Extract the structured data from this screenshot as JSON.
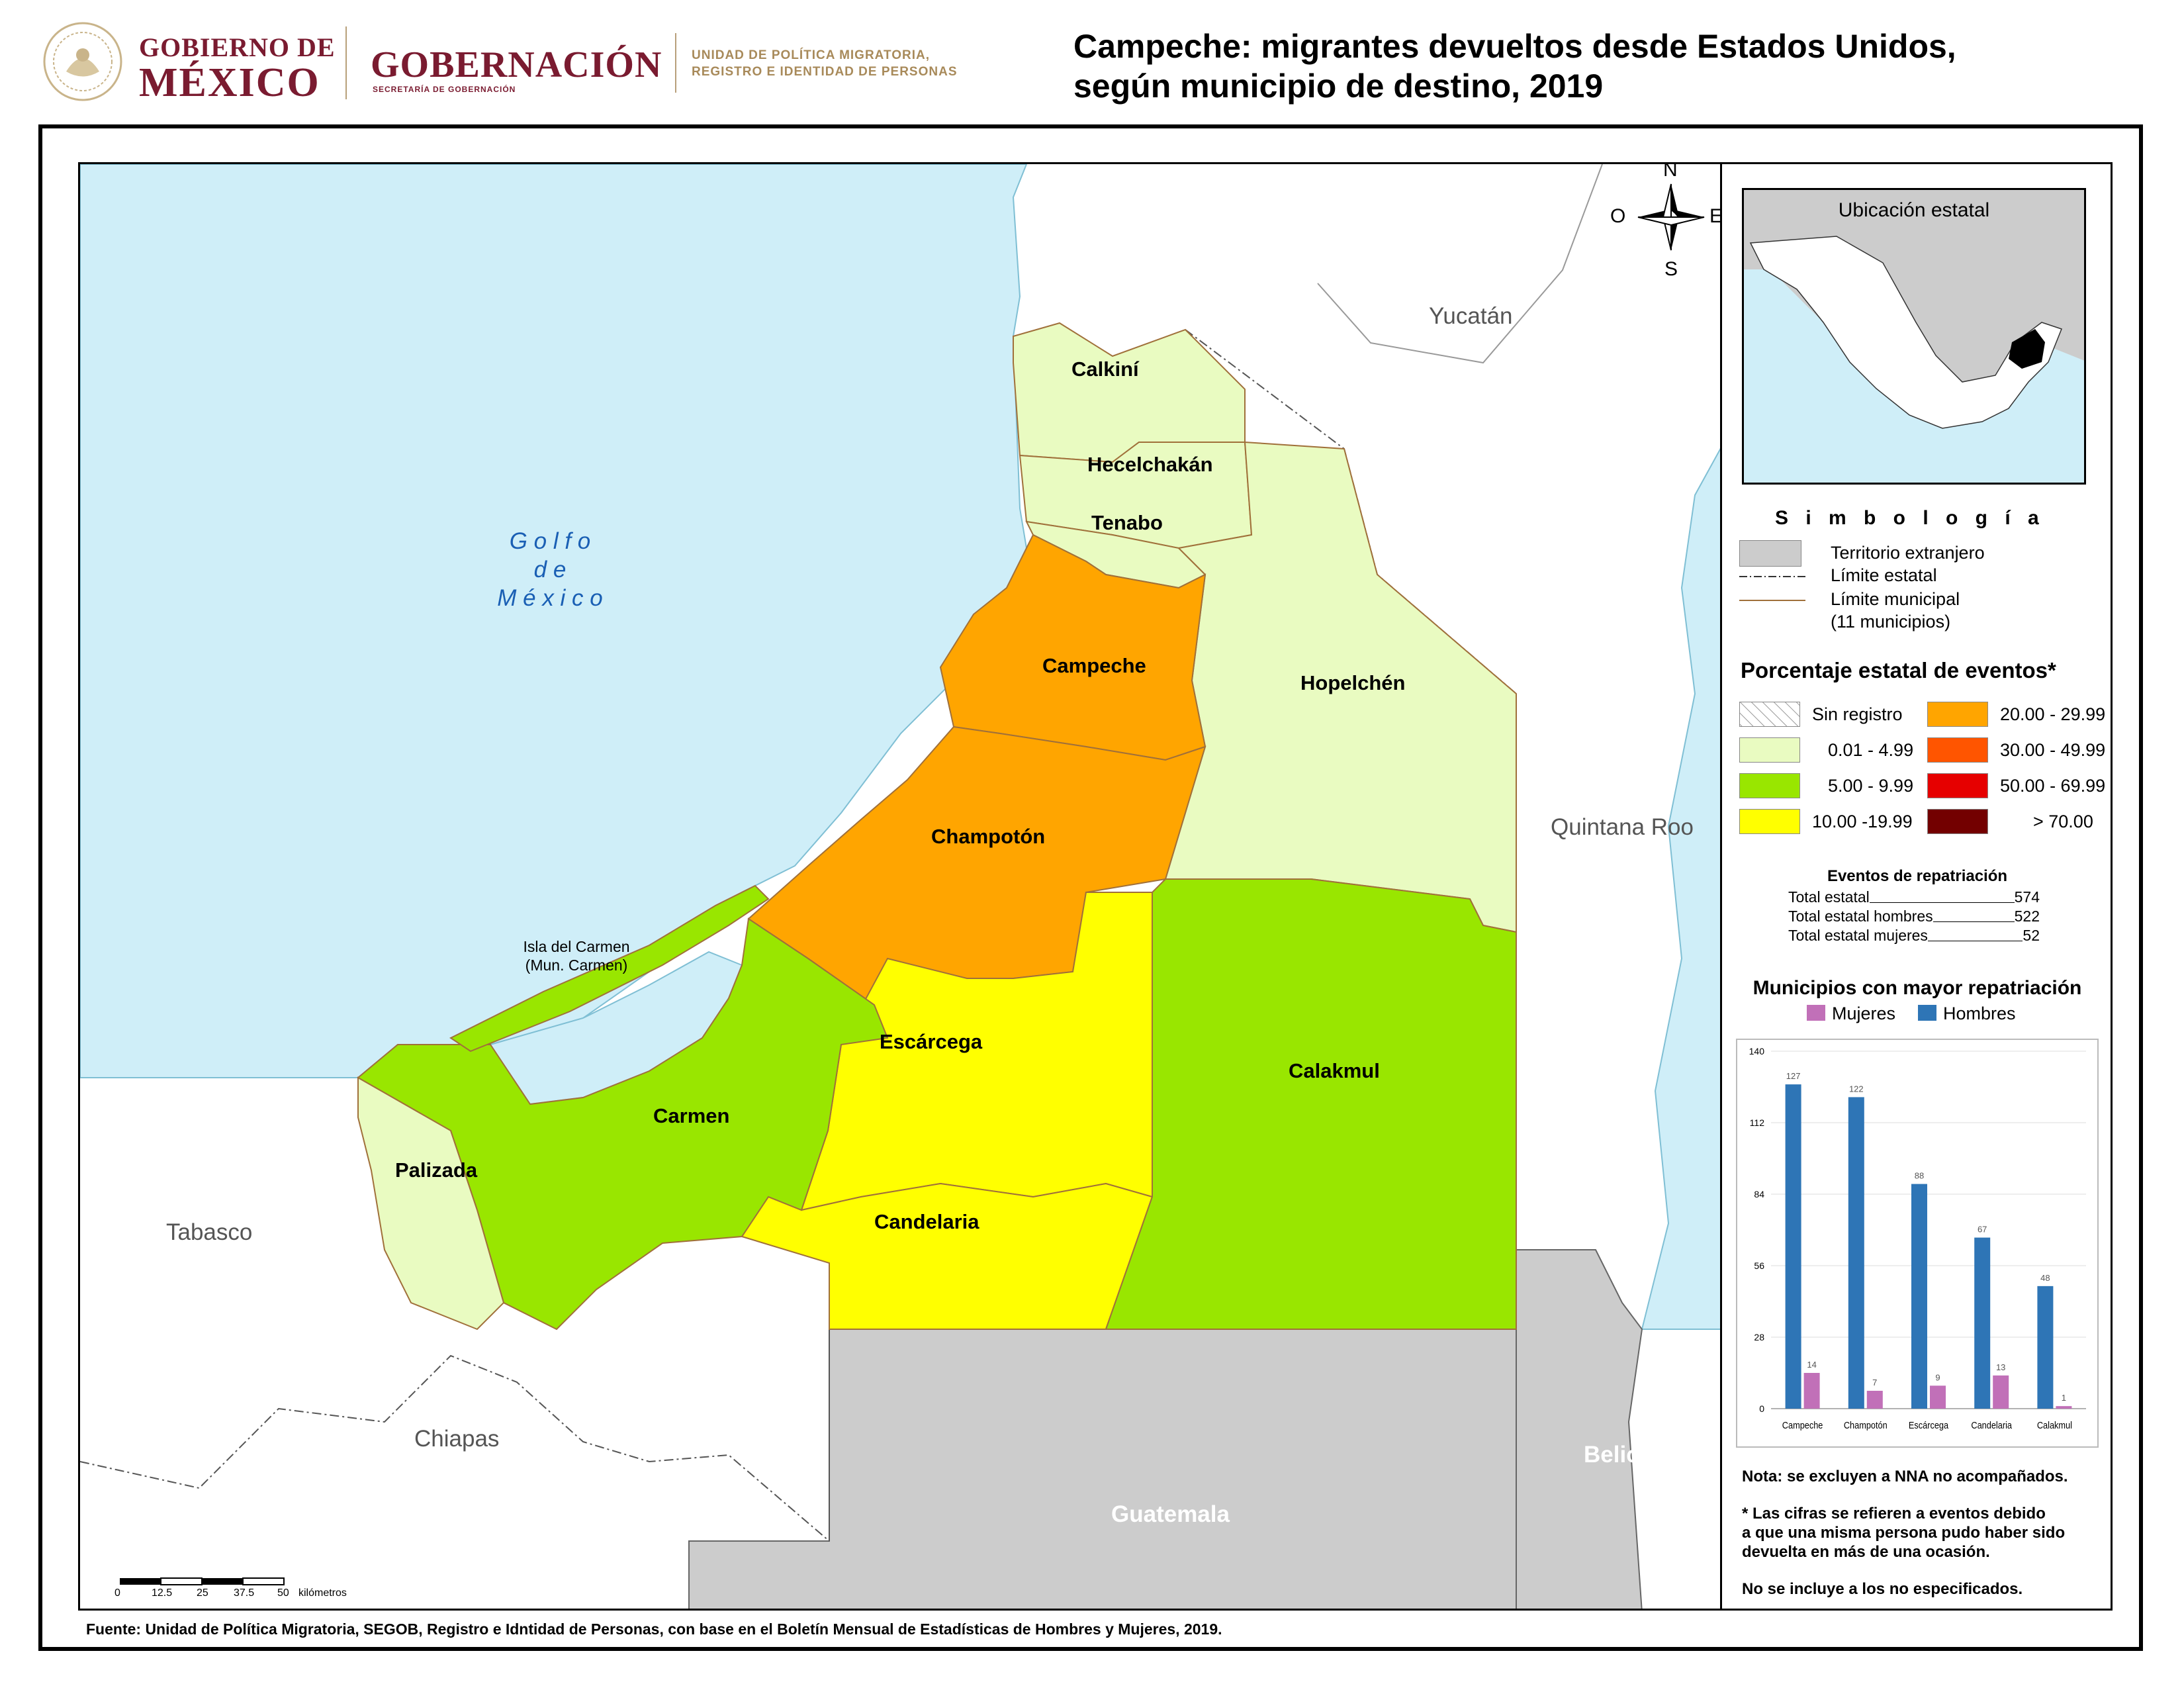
{
  "header": {
    "gobierno_line1": "GOBIERNO DE",
    "gobierno_line2": "MÉXICO",
    "gobernacion": "GOBERNACIÓN",
    "secretaria": "SECRETARÍA DE GOBERNACIÓN",
    "unidad_line1": "UNIDAD DE POLÍTICA MIGRATORIA,",
    "unidad_line2": "REGISTRO E IDENTIDAD DE PERSONAS",
    "title_line1": "Campeche: migrantes devueltos desde Estados Unidos,",
    "title_line2": "según municipio de destino, 2019"
  },
  "map": {
    "compass": {
      "n": "N",
      "s": "S",
      "e": "E",
      "w": "O"
    },
    "gulf_line1": "G o l f o",
    "gulf_line2": "d e",
    "gulf_line3": "M é x i c o",
    "island_line1": "Isla del Carmen",
    "island_line2": "(Mun. Carmen)",
    "states": {
      "yucatan": "Yucatán",
      "quintana_roo": "Quintana Roo",
      "tabasco": "Tabasco",
      "chiapas": "Chiapas",
      "belice": "Belice",
      "guatemala": "Guatemala"
    },
    "municipios": [
      {
        "name": "Calkiní",
        "class": "0.01 - 4.99",
        "color": "#e9fbc1"
      },
      {
        "name": "Hecelchakán",
        "class": "0.01 - 4.99",
        "color": "#e9fbc1"
      },
      {
        "name": "Tenabo",
        "class": "0.01 - 4.99",
        "color": "#e9fbc1"
      },
      {
        "name": "Campeche",
        "class": "20.00 - 29.99",
        "color": "#ffa500"
      },
      {
        "name": "Hopelchén",
        "class": "0.01 - 4.99",
        "color": "#e9fbc1"
      },
      {
        "name": "Champotón",
        "class": "20.00 - 29.99",
        "color": "#ffa500"
      },
      {
        "name": "Escárcega",
        "class": "10.00 -19.99",
        "color": "#ffff00"
      },
      {
        "name": "Calakmul",
        "class": "5.00 - 9.99",
        "color": "#99e600"
      },
      {
        "name": "Carmen",
        "class": "5.00 - 9.99",
        "color": "#99e600"
      },
      {
        "name": "Palizada",
        "class": "0.01 - 4.99",
        "color": "#e9fbc1"
      },
      {
        "name": "Candelaria",
        "class": "10.00 -19.99",
        "color": "#ffff00"
      }
    ],
    "scale": {
      "ticks": [
        "0",
        "12.5",
        "25",
        "37.5",
        "50"
      ],
      "unit": "kilómetros"
    },
    "colors": {
      "sea": "#cfeef8",
      "foreign": "#cccccc",
      "land": "#ffffff"
    }
  },
  "panel": {
    "inset_title": "Ubicación estatal",
    "simbologia_title": "S i m b o l o g í a",
    "simbologia": {
      "territorio": "Territorio extranjero",
      "limite_estatal": "Límite estatal",
      "limite_municipal": "Límite municipal",
      "municipios_count": "(11 municipios)"
    },
    "pct_title": "Porcentaje estatal de eventos*",
    "pct_classes": [
      {
        "label": "Sin registro",
        "color": "#ffffff"
      },
      {
        "label": "0.01  - 4.99",
        "color": "#e9fbc1"
      },
      {
        "label": "5.00  - 9.99",
        "color": "#99e600"
      },
      {
        "label": "10.00 -19.99",
        "color": "#ffff00"
      },
      {
        "label": "20.00 - 29.99",
        "color": "#ffa500"
      },
      {
        "label": "30.00 - 49.99",
        "color": "#ff5500"
      },
      {
        "label": "50.00 - 69.99",
        "color": "#e60000"
      },
      {
        "label": "> 70.00",
        "color": "#730000"
      }
    ],
    "eventos_title": "Eventos de repatriación",
    "eventos": [
      {
        "label": "Total estatal",
        "value": "574"
      },
      {
        "label": "Total estatal hombres",
        "value": "522"
      },
      {
        "label": "Total estatal mujeres",
        "value": "52"
      }
    ],
    "chart_title": "Municipios con mayor repatriación",
    "notes": {
      "nota": "Nota: se excluyen a NNA no acompañados.",
      "ast_line1": "* Las cifras se refieren a eventos debido",
      "ast_line2": "a que una misma persona pudo haber sido",
      "ast_line3": "devuelta en más de una ocasión.",
      "no_esp": "No se incluye a los no especificados."
    }
  },
  "chart_data": {
    "type": "bar",
    "categories": [
      "Campeche",
      "Champotón",
      "Escárcega",
      "Candelaria",
      "Calakmul"
    ],
    "series": [
      {
        "name": "Hombres",
        "values": [
          127,
          122,
          88,
          67,
          48
        ],
        "color": "#2e75b6"
      },
      {
        "name": "Mujeres",
        "values": [
          14,
          7,
          9,
          13,
          1
        ],
        "color": "#c170b8"
      }
    ],
    "yticks": [
      "0",
      "28",
      "56",
      "84",
      "112",
      "140"
    ],
    "ylim": [
      0,
      140
    ],
    "legend_placement": "top"
  },
  "footer": {
    "source": "Fuente: Unidad de Política Migratoria, SEGOB, Registro e Idntidad de Personas, con base en el Boletín Mensual de Estadísticas de Hombres y Mujeres, 2019."
  }
}
